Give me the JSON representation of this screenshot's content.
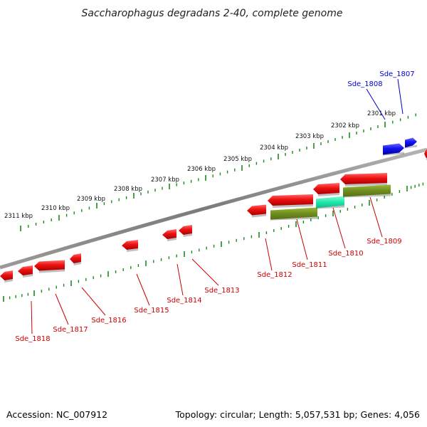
{
  "title": "Saccharophagus degradans 2-40, complete genome",
  "footer": {
    "accession": "Accession: NC_007912",
    "topology": "Topology: circular; Length: 5,057,531 bp; Genes: 4,056"
  },
  "colors": {
    "backbone": "#8a8a8a",
    "tick": "#1a8a1a",
    "gene_forward": "#ee1111",
    "gene_reverse": "#dd1111",
    "gene_blue": "#1111dd",
    "gene_olive": "#7a9a22",
    "gene_cyan": "#22ddaa",
    "label_red": "#cc0000",
    "label_blue": "#0000cc"
  },
  "kbp_labels": [
    "2311 kbp",
    "2310 kbp",
    "2309 kbp",
    "2308 kbp",
    "2307 kbp",
    "2306 kbp",
    "2305 kbp",
    "2304 kbp",
    "2303 kbp",
    "2302 kbp",
    "2301 kbp"
  ],
  "gene_labels": [
    "Sde_1807",
    "Sde_1808",
    "Sde_1809",
    "Sde_1810",
    "Sde_1811",
    "Sde_1812",
    "Sde_1813",
    "Sde_1814",
    "Sde_1815",
    "Sde_1816",
    "Sde_1817",
    "Sde_1818"
  ]
}
